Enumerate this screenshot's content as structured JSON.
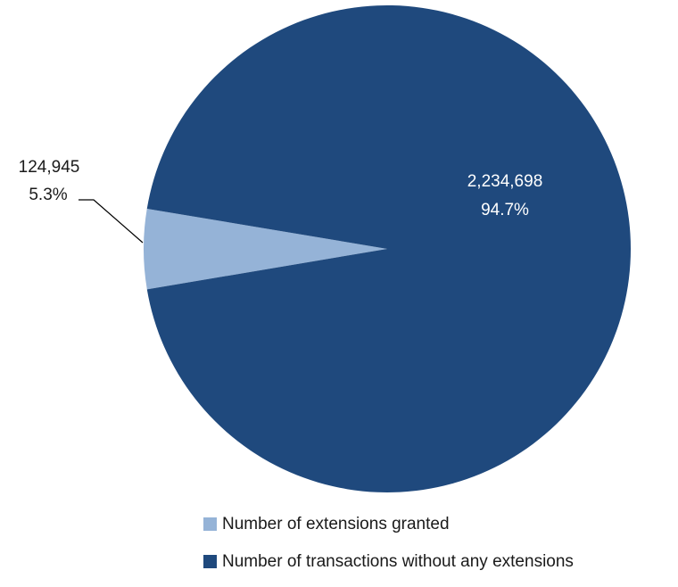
{
  "chart_data": {
    "type": "pie",
    "title": "",
    "slices": [
      {
        "name": "Number of extensions granted",
        "value": 124945,
        "value_label": "124,945",
        "percent": 5.3,
        "percent_label": "5.3%",
        "color": "#95b3d7"
      },
      {
        "name": "Number of transactions without any extensions",
        "value": 2234698,
        "value_label": "2,234,698",
        "percent": 94.7,
        "percent_label": "94.7%",
        "color": "#1f497d"
      }
    ],
    "legend": {
      "placement": "bottom",
      "entries": [
        "Number of extensions granted",
        "Number of transactions without any extensions"
      ]
    }
  }
}
